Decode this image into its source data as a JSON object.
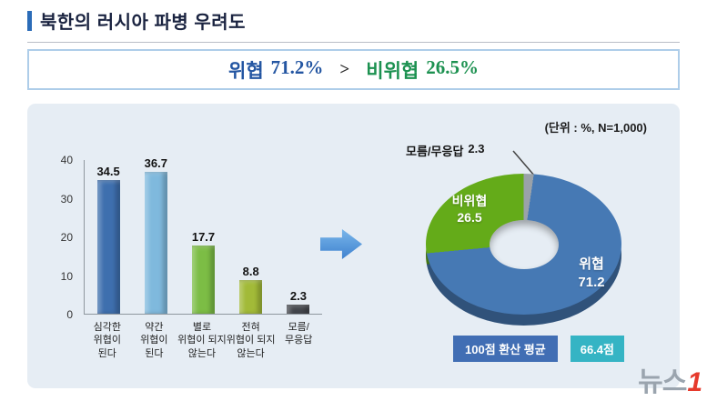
{
  "title": "북한의 러시아 파병 우려도",
  "summary": {
    "threat_label": "위협",
    "threat_value": "71.2%",
    "comparator": ">",
    "non_threat_label": "비위협",
    "non_threat_value": "26.5%"
  },
  "panel": {
    "unit_note": "(단위 : %, N=1,000)"
  },
  "chart_data": [
    {
      "type": "bar",
      "categories": [
        "심각한\n위협이\n된다",
        "약간\n위협이\n된다",
        "별로\n위협이 되지\n않는다",
        "전혀\n위협이 되지\n않는다",
        "모름/\n무응답"
      ],
      "values": [
        34.5,
        36.7,
        17.7,
        8.8,
        2.3
      ],
      "colors": [
        "#3e6fae",
        "#7fb9dd",
        "#7cbd45",
        "#a2ba38",
        "#43464c"
      ],
      "ylim": [
        0,
        40
      ],
      "yticks": [
        0,
        10,
        20,
        30,
        40
      ],
      "unit": "%"
    },
    {
      "type": "pie",
      "donut": true,
      "slices": [
        {
          "label": "모름/무응답",
          "value": 2.3,
          "color": "#9aa2a9"
        },
        {
          "label": "위협",
          "value": 71.2,
          "color": "#4679b4"
        },
        {
          "label": "비위협",
          "value": 26.5,
          "color": "#64ab19"
        }
      ]
    }
  ],
  "average": {
    "label": "100점 환산 평균",
    "value": "66.4점"
  },
  "watermark": {
    "text": "뉴스",
    "accent": "1"
  }
}
